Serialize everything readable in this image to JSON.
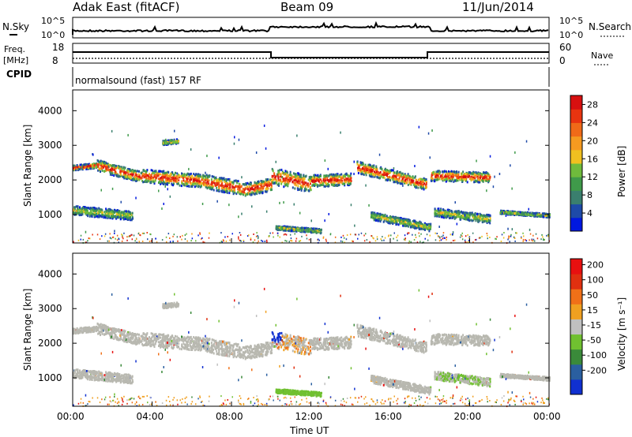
{
  "header": {
    "station": "Adak East (fitACF)",
    "beam": "Beam 09",
    "date": "11/Jun/2014"
  },
  "top_panels": {
    "nsky_label": "N.Sky",
    "nsky_ticks": [
      "10^5",
      "10^0"
    ],
    "nsearch_label": "N.Search",
    "nsearch_ticks": [
      "10^5",
      "10^0"
    ],
    "freq_label": "Freq.",
    "freq_unit": "[MHz]",
    "freq_ticks": [
      "18",
      "8"
    ],
    "nave_label": "Nave",
    "nave_ticks": [
      "60",
      "0"
    ],
    "cpid_label": "CPID",
    "cpid_text": "normalsound (fast) 157 RF"
  },
  "chart_data": [
    {
      "type": "heatmap",
      "name": "power",
      "ylabel": "Slant Range [km]",
      "yticks": [
        "1000",
        "2000",
        "3000",
        "4000"
      ],
      "ylim": [
        180,
        4600
      ],
      "xlim_hours": [
        0,
        24
      ],
      "colorbar_label": "Power [dB]",
      "colorbar_ticks": [
        "4",
        "8",
        "12",
        "16",
        "20",
        "24",
        "28"
      ],
      "colorbar_colors": [
        "#0018e0",
        "#1e4aa8",
        "#3a7f6e",
        "#3f9a4a",
        "#6fbb3c",
        "#f0c020",
        "#f59a20",
        "#f06a18",
        "#e83410",
        "#d81010"
      ],
      "colorbar_range": [
        0,
        30
      ]
    },
    {
      "type": "heatmap",
      "name": "velocity",
      "ylabel": "Slant Range [km]",
      "yticks": [
        "1000",
        "2000",
        "3000",
        "4000"
      ],
      "ylim": [
        180,
        4600
      ],
      "xlabel": "Time UT",
      "xticks": [
        "00:00",
        "04:00",
        "08:00",
        "12:00",
        "16:00",
        "20:00",
        "00:00"
      ],
      "colorbar_label": "Velocity [m s⁻¹]",
      "colorbar_ticks": [
        "200",
        "100",
        "50",
        "15",
        "-15",
        "-50",
        "-100",
        "-200"
      ],
      "colorbar_colors": [
        "#1030d0",
        "#2a5fa0",
        "#3a8a3a",
        "#70c030",
        "#c0c0c0",
        "#f0a020",
        "#f07018",
        "#e03010",
        "#e81010"
      ]
    }
  ],
  "colors": {
    "ground_scatter": "#b8b8b0",
    "axis": "#000000"
  }
}
